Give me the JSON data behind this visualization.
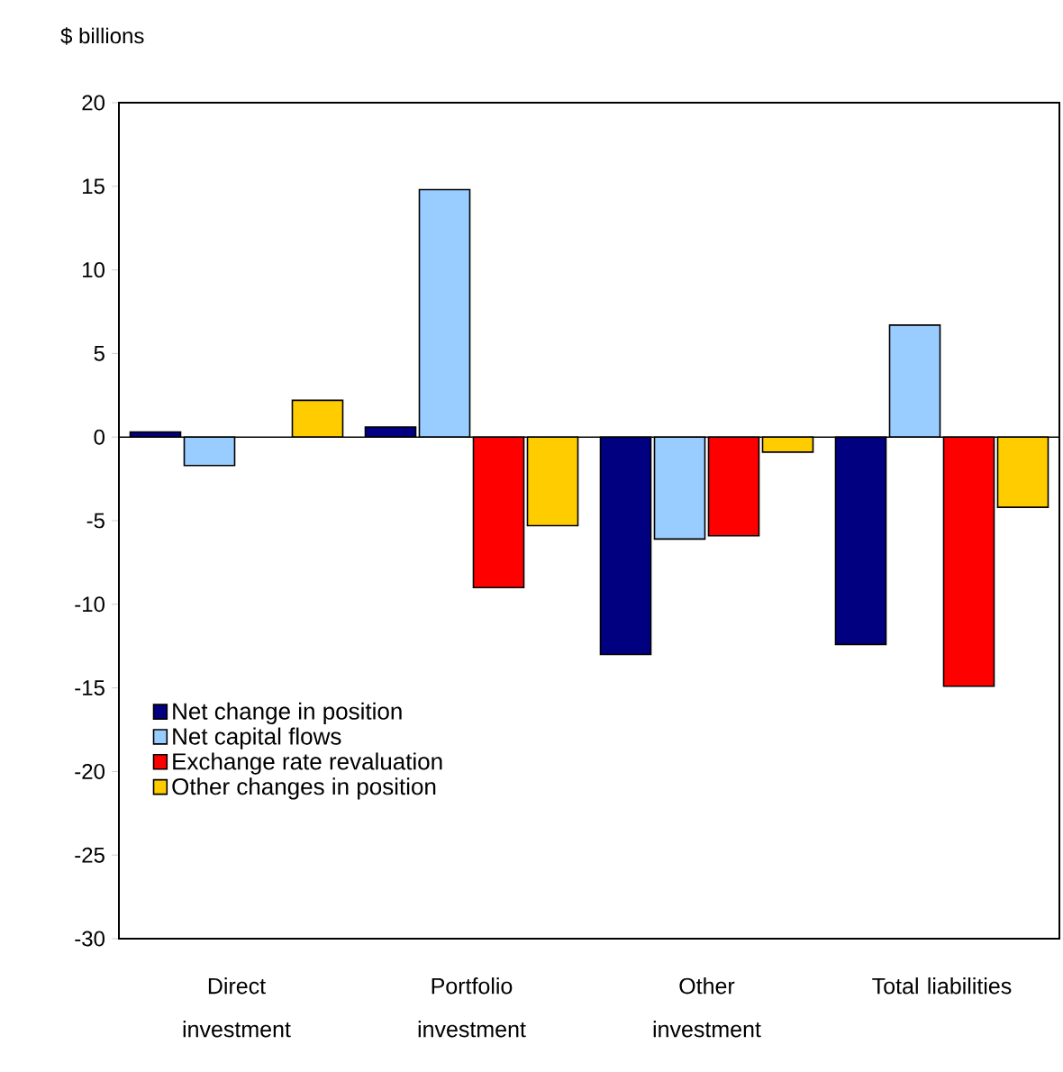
{
  "chart_data": {
    "type": "bar",
    "ylabel": "$ billions",
    "categories": [
      "Direct investment",
      "Portfolio investment",
      "Other investment",
      "Total liabilities"
    ],
    "series": [
      {
        "name": "Net change in position",
        "color": "#000080",
        "values": [
          0.3,
          0.6,
          -13.0,
          -12.4
        ]
      },
      {
        "name": "Net capital flows",
        "color": "#99ccff",
        "values": [
          -1.7,
          14.8,
          -6.1,
          6.7
        ]
      },
      {
        "name": "Exchange rate revaluation",
        "color": "#ff0000",
        "values": [
          null,
          -9.0,
          -5.9,
          -14.9
        ]
      },
      {
        "name": "Other changes in position",
        "color": "#ffcc00",
        "values": [
          2.2,
          -5.3,
          -0.9,
          -4.2
        ]
      }
    ],
    "ylim": [
      -30,
      20
    ],
    "yticks": [
      -30,
      -25,
      -20,
      -15,
      -10,
      -5,
      0,
      5,
      10,
      15,
      20
    ],
    "legend": "bottom left"
  }
}
